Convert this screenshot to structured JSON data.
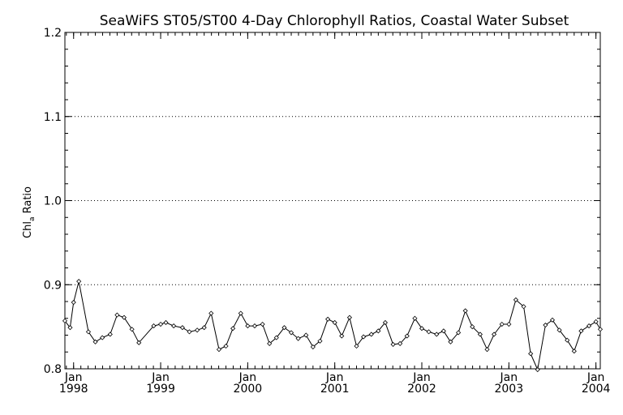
{
  "chart_data": {
    "type": "line",
    "title": "SeaWiFS ST05/ST00 4-Day Chlorophyll Ratios, Coastal Water Subset",
    "ylabel": {
      "main": "Chl",
      "subscript": "a",
      "suffix": " Ratio"
    },
    "ylim": [
      0.8,
      1.2
    ],
    "xlim": [
      1997.9,
      2004.05
    ],
    "grid": true,
    "y_ticks": [
      {
        "value": 0.8,
        "label": "0.8"
      },
      {
        "value": 0.9,
        "label": "0.9"
      },
      {
        "value": 1.0,
        "label": "1.0"
      },
      {
        "value": 1.1,
        "label": "1.1"
      },
      {
        "value": 1.2,
        "label": "1.2"
      }
    ],
    "x_ticks": [
      {
        "value": 1998,
        "month": "Jan",
        "year": "1998"
      },
      {
        "value": 1999,
        "month": "Jan",
        "year": "1999"
      },
      {
        "value": 2000,
        "month": "Jan",
        "year": "2000"
      },
      {
        "value": 2001,
        "month": "Jan",
        "year": "2001"
      },
      {
        "value": 2002,
        "month": "Jan",
        "year": "2002"
      },
      {
        "value": 2003,
        "month": "Jan",
        "year": "2003"
      },
      {
        "value": 2004,
        "month": "Jan",
        "year": "2004"
      }
    ],
    "series": [
      {
        "x": [
          1997.9,
          1997.96,
          1998.0,
          1998.06,
          1998.17,
          1998.25,
          1998.33,
          1998.42,
          1998.5,
          1998.58,
          1998.67,
          1998.75,
          1998.92,
          1999.0,
          1999.06,
          1999.15,
          1999.25,
          1999.33,
          1999.42,
          1999.5,
          1999.58,
          1999.67,
          1999.75,
          1999.83,
          1999.92,
          2000.0,
          2000.08,
          2000.17,
          2000.25,
          2000.33,
          2000.42,
          2000.5,
          2000.58,
          2000.67,
          2000.75,
          2000.83,
          2000.92,
          2001.0,
          2001.08,
          2001.17,
          2001.25,
          2001.33,
          2001.42,
          2001.5,
          2001.58,
          2001.67,
          2001.75,
          2001.83,
          2001.92,
          2002.0,
          2002.08,
          2002.17,
          2002.25,
          2002.33,
          2002.42,
          2002.5,
          2002.58,
          2002.67,
          2002.75,
          2002.83,
          2002.92,
          2003.0,
          2003.08,
          2003.17,
          2003.25,
          2003.33,
          2003.42,
          2003.5,
          2003.58,
          2003.67,
          2003.75,
          2003.83,
          2003.92,
          2004.0,
          2004.05
        ],
        "y": [
          0.857,
          0.849,
          0.879,
          0.904,
          0.844,
          0.832,
          0.837,
          0.841,
          0.864,
          0.861,
          0.847,
          0.831,
          0.851,
          0.853,
          0.855,
          0.851,
          0.849,
          0.844,
          0.846,
          0.849,
          0.866,
          0.823,
          0.827,
          0.848,
          0.866,
          0.851,
          0.851,
          0.853,
          0.83,
          0.837,
          0.849,
          0.843,
          0.836,
          0.84,
          0.826,
          0.833,
          0.859,
          0.855,
          0.839,
          0.861,
          0.827,
          0.838,
          0.841,
          0.845,
          0.855,
          0.829,
          0.83,
          0.839,
          0.86,
          0.848,
          0.844,
          0.841,
          0.845,
          0.832,
          0.843,
          0.869,
          0.85,
          0.841,
          0.823,
          0.841,
          0.853,
          0.853,
          0.882,
          0.874,
          0.818,
          0.799,
          0.852,
          0.858,
          0.846,
          0.834,
          0.821,
          0.845,
          0.851,
          0.856,
          0.847
        ]
      }
    ]
  }
}
